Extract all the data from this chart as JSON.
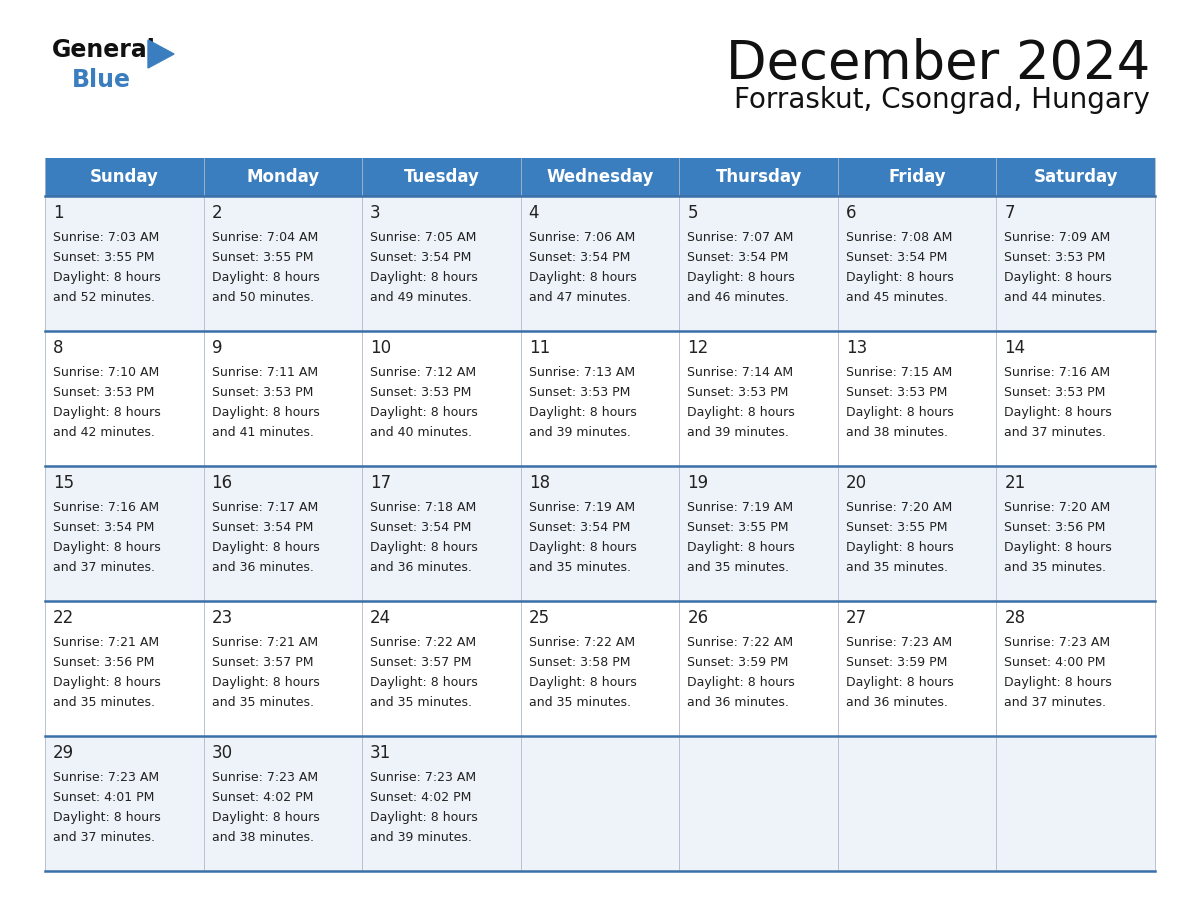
{
  "title": "December 2024",
  "subtitle": "Forraskut, Csongrad, Hungary",
  "header_color": "#3a7ebf",
  "header_text_color": "#ffffff",
  "border_color": "#3a6fa8",
  "text_color": "#222222",
  "days_of_week": [
    "Sunday",
    "Monday",
    "Tuesday",
    "Wednesday",
    "Thursday",
    "Friday",
    "Saturday"
  ],
  "weeks": [
    [
      {
        "day": 1,
        "sunrise": "7:03 AM",
        "sunset": "3:55 PM",
        "daylight": "8 hours and 52 minutes."
      },
      {
        "day": 2,
        "sunrise": "7:04 AM",
        "sunset": "3:55 PM",
        "daylight": "8 hours and 50 minutes."
      },
      {
        "day": 3,
        "sunrise": "7:05 AM",
        "sunset": "3:54 PM",
        "daylight": "8 hours and 49 minutes."
      },
      {
        "day": 4,
        "sunrise": "7:06 AM",
        "sunset": "3:54 PM",
        "daylight": "8 hours and 47 minutes."
      },
      {
        "day": 5,
        "sunrise": "7:07 AM",
        "sunset": "3:54 PM",
        "daylight": "8 hours and 46 minutes."
      },
      {
        "day": 6,
        "sunrise": "7:08 AM",
        "sunset": "3:54 PM",
        "daylight": "8 hours and 45 minutes."
      },
      {
        "day": 7,
        "sunrise": "7:09 AM",
        "sunset": "3:53 PM",
        "daylight": "8 hours and 44 minutes."
      }
    ],
    [
      {
        "day": 8,
        "sunrise": "7:10 AM",
        "sunset": "3:53 PM",
        "daylight": "8 hours and 42 minutes."
      },
      {
        "day": 9,
        "sunrise": "7:11 AM",
        "sunset": "3:53 PM",
        "daylight": "8 hours and 41 minutes."
      },
      {
        "day": 10,
        "sunrise": "7:12 AM",
        "sunset": "3:53 PM",
        "daylight": "8 hours and 40 minutes."
      },
      {
        "day": 11,
        "sunrise": "7:13 AM",
        "sunset": "3:53 PM",
        "daylight": "8 hours and 39 minutes."
      },
      {
        "day": 12,
        "sunrise": "7:14 AM",
        "sunset": "3:53 PM",
        "daylight": "8 hours and 39 minutes."
      },
      {
        "day": 13,
        "sunrise": "7:15 AM",
        "sunset": "3:53 PM",
        "daylight": "8 hours and 38 minutes."
      },
      {
        "day": 14,
        "sunrise": "7:16 AM",
        "sunset": "3:53 PM",
        "daylight": "8 hours and 37 minutes."
      }
    ],
    [
      {
        "day": 15,
        "sunrise": "7:16 AM",
        "sunset": "3:54 PM",
        "daylight": "8 hours and 37 minutes."
      },
      {
        "day": 16,
        "sunrise": "7:17 AM",
        "sunset": "3:54 PM",
        "daylight": "8 hours and 36 minutes."
      },
      {
        "day": 17,
        "sunrise": "7:18 AM",
        "sunset": "3:54 PM",
        "daylight": "8 hours and 36 minutes."
      },
      {
        "day": 18,
        "sunrise": "7:19 AM",
        "sunset": "3:54 PM",
        "daylight": "8 hours and 35 minutes."
      },
      {
        "day": 19,
        "sunrise": "7:19 AM",
        "sunset": "3:55 PM",
        "daylight": "8 hours and 35 minutes."
      },
      {
        "day": 20,
        "sunrise": "7:20 AM",
        "sunset": "3:55 PM",
        "daylight": "8 hours and 35 minutes."
      },
      {
        "day": 21,
        "sunrise": "7:20 AM",
        "sunset": "3:56 PM",
        "daylight": "8 hours and 35 minutes."
      }
    ],
    [
      {
        "day": 22,
        "sunrise": "7:21 AM",
        "sunset": "3:56 PM",
        "daylight": "8 hours and 35 minutes."
      },
      {
        "day": 23,
        "sunrise": "7:21 AM",
        "sunset": "3:57 PM",
        "daylight": "8 hours and 35 minutes."
      },
      {
        "day": 24,
        "sunrise": "7:22 AM",
        "sunset": "3:57 PM",
        "daylight": "8 hours and 35 minutes."
      },
      {
        "day": 25,
        "sunrise": "7:22 AM",
        "sunset": "3:58 PM",
        "daylight": "8 hours and 35 minutes."
      },
      {
        "day": 26,
        "sunrise": "7:22 AM",
        "sunset": "3:59 PM",
        "daylight": "8 hours and 36 minutes."
      },
      {
        "day": 27,
        "sunrise": "7:23 AM",
        "sunset": "3:59 PM",
        "daylight": "8 hours and 36 minutes."
      },
      {
        "day": 28,
        "sunrise": "7:23 AM",
        "sunset": "4:00 PM",
        "daylight": "8 hours and 37 minutes."
      }
    ],
    [
      {
        "day": 29,
        "sunrise": "7:23 AM",
        "sunset": "4:01 PM",
        "daylight": "8 hours and 37 minutes."
      },
      {
        "day": 30,
        "sunrise": "7:23 AM",
        "sunset": "4:02 PM",
        "daylight": "8 hours and 38 minutes."
      },
      {
        "day": 31,
        "sunrise": "7:23 AM",
        "sunset": "4:02 PM",
        "daylight": "8 hours and 39 minutes."
      },
      null,
      null,
      null,
      null
    ]
  ],
  "logo_color_general": "#111111",
  "logo_color_blue": "#3a7ebf",
  "logo_triangle_color": "#3a7ebf",
  "row_bg_colors": [
    "#eef3f9",
    "#ffffff",
    "#eef3f9",
    "#ffffff",
    "#eef3f9"
  ]
}
